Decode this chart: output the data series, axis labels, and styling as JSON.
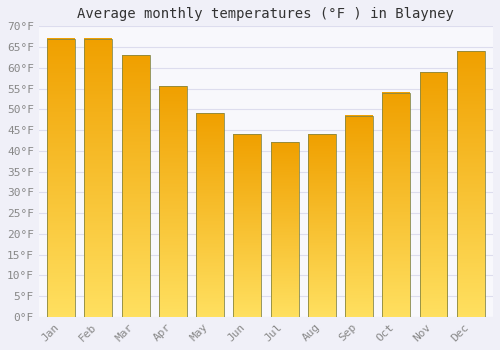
{
  "title": "Average monthly temperatures (°F ) in Blayney",
  "months": [
    "Jan",
    "Feb",
    "Mar",
    "Apr",
    "May",
    "Jun",
    "Jul",
    "Aug",
    "Sep",
    "Oct",
    "Nov",
    "Dec"
  ],
  "values": [
    67,
    67,
    63,
    55.5,
    49,
    44,
    42,
    44,
    48.5,
    54,
    59,
    64
  ],
  "bar_color_top": "#FFE060",
  "bar_color_bottom": "#F0A000",
  "bar_edge_color": "#888844",
  "ylim": [
    0,
    70
  ],
  "yticks": [
    0,
    5,
    10,
    15,
    20,
    25,
    30,
    35,
    40,
    45,
    50,
    55,
    60,
    65,
    70
  ],
  "ylabel_suffix": "°F",
  "background_color": "#F0F0F8",
  "plot_bg_color": "#F8F8FC",
  "grid_color": "#ddddee",
  "title_fontsize": 10,
  "tick_fontsize": 8,
  "bar_width": 0.75
}
